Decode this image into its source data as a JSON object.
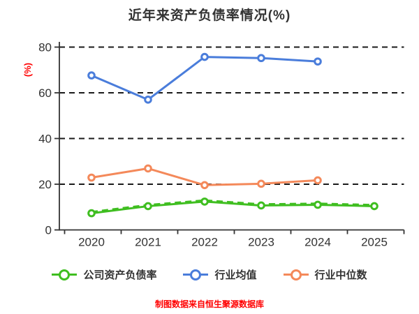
{
  "title": "近年来资产负债率情况(%)",
  "source_note": "制图数据来自恒生聚源数据库",
  "chart_data": {
    "type": "line",
    "title": "近年来资产负债率情况(%)",
    "ylabel": "(%)",
    "categories": [
      "2020",
      "2021",
      "2022",
      "2023",
      "2024",
      "2025"
    ],
    "yticks": [
      0,
      20,
      40,
      60,
      80
    ],
    "ylim": [
      0,
      80
    ],
    "grid": "horizontal-dashed",
    "legend_position": "bottom",
    "marker_style": "circle-white-fill",
    "series": [
      {
        "name": "公司资产负债率",
        "color": "#3FBE20",
        "values": [
          7.3,
          10.4,
          12.4,
          10.7,
          11.0,
          10.4
        ]
      },
      {
        "name": "行业均值",
        "color": "#4A7DDB",
        "values": [
          67.6,
          57.0,
          75.7,
          75.2,
          73.7,
          null
        ]
      },
      {
        "name": "行业中位数",
        "color": "#F4895A",
        "values": [
          22.9,
          26.9,
          19.6,
          20.2,
          21.7,
          null
        ]
      }
    ]
  },
  "colors": {
    "background": "#FFFFFF",
    "title_text": "#333333",
    "axis_text": "#333333",
    "axis_line": "#333333",
    "ylabel_text": "#FF0000",
    "source_text": "#FF0000",
    "gridline": "#1A1A1A"
  }
}
